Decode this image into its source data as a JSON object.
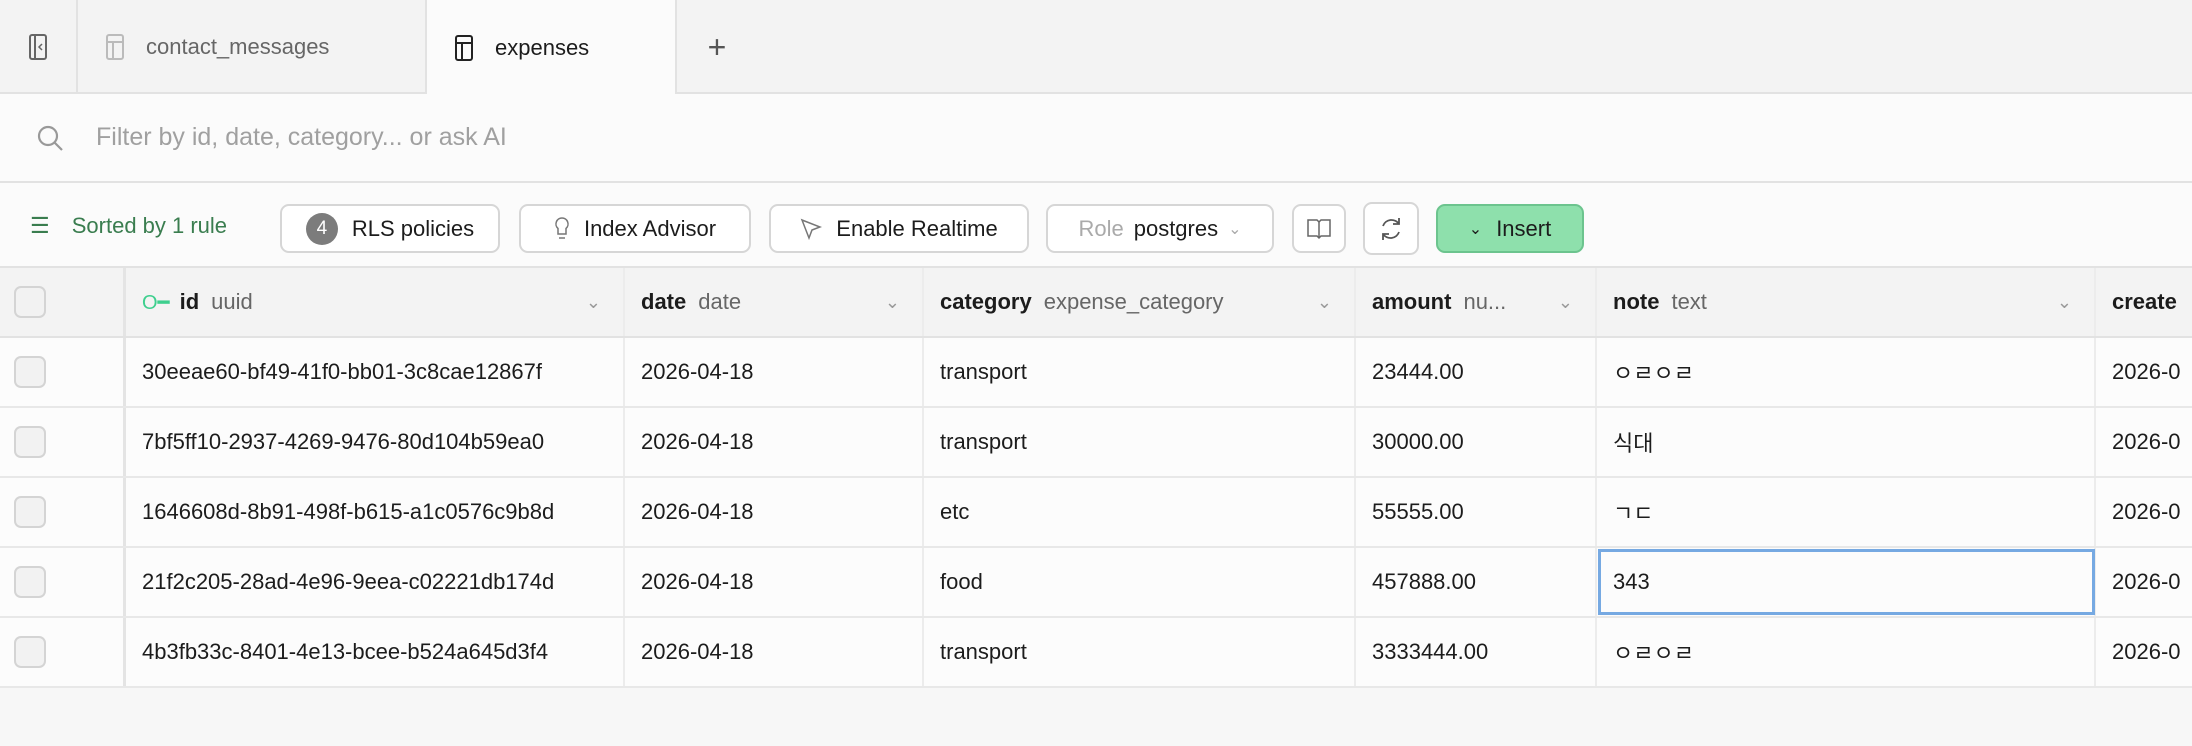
{
  "tabs": [
    {
      "label": "contact_messages",
      "active": false
    },
    {
      "label": "expenses",
      "active": true
    }
  ],
  "search": {
    "placeholder": "Filter by id, date, category... or ask AI"
  },
  "toolbar": {
    "sorted": "Sorted by 1 rule",
    "rls_count": "4",
    "rls": "RLS policies",
    "index_advisor": "Index Advisor",
    "realtime": "Enable Realtime",
    "role_label": "Role",
    "role_value": "postgres",
    "insert": "Insert"
  },
  "columns": [
    {
      "name": "id",
      "type": "uuid",
      "primary_key": true
    },
    {
      "name": "date",
      "type": "date"
    },
    {
      "name": "category",
      "type": "expense_category"
    },
    {
      "name": "amount",
      "type": "nu..."
    },
    {
      "name": "note",
      "type": "text"
    },
    {
      "name": "create",
      "type": ""
    }
  ],
  "rows": [
    {
      "id": "30eeae60-bf49-41f0-bb01-3c8cae12867f",
      "date": "2026-04-18",
      "category": "transport",
      "amount": "23444.00",
      "note": "ㅇㄹㅇㄹ",
      "created": "2026-0"
    },
    {
      "id": "7bf5ff10-2937-4269-9476-80d104b59ea0",
      "date": "2026-04-18",
      "category": "transport",
      "amount": "30000.00",
      "note": "식대",
      "created": "2026-0"
    },
    {
      "id": "1646608d-8b91-498f-b615-a1c0576c9b8d",
      "date": "2026-04-18",
      "category": "etc",
      "amount": "55555.00",
      "note": "ㄱㄷ",
      "created": "2026-0"
    },
    {
      "id": "21f2c205-28ad-4e96-9eea-c02221db174d",
      "date": "2026-04-18",
      "category": "food",
      "amount": "457888.00",
      "note": "343",
      "created": "2026-0"
    },
    {
      "id": "4b3fb33c-8401-4e13-bcee-b524a645d3f4",
      "date": "2026-04-18",
      "category": "transport",
      "amount": "3333444.00",
      "note": "ㅇㄹㅇㄹ",
      "created": "2026-0"
    }
  ],
  "colors": {
    "accent": "#3a7d4f",
    "insert_bg": "#8ee0ac",
    "selection": "#76a9e2"
  }
}
